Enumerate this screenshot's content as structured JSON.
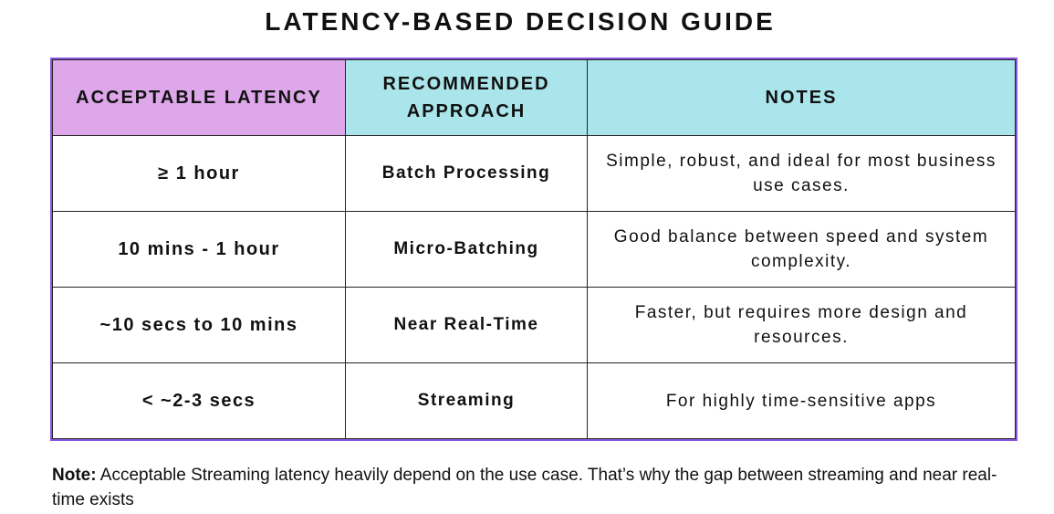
{
  "header": {
    "title": "LATENCY-BASED DECISION GUIDE"
  },
  "table": {
    "columns": [
      "ACCEPTABLE LATENCY",
      "RECOMMENDED APPROACH",
      "NOTES"
    ],
    "rows": [
      [
        "≥ 1 hour",
        "Batch Processing",
        "Simple, robust, and ideal for most business use cases."
      ],
      [
        "10 mins - 1 hour",
        "Micro-Batching",
        "Good balance between speed and system complexity."
      ],
      [
        "~10 secs to 10 mins",
        "Near Real-Time",
        "Faster, but requires more design and resources."
      ],
      [
        "< ~2-3 secs",
        "Streaming",
        "For highly time-sensitive apps"
      ]
    ]
  },
  "note": {
    "label": "Note:",
    "text": "Acceptable Streaming latency heavily depend on the use case. That’s why the gap between streaming and near real-time exists"
  }
}
